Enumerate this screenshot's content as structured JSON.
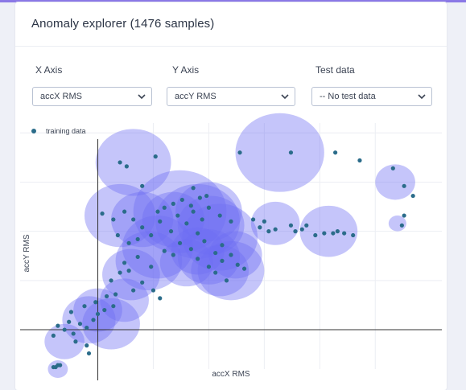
{
  "card": {
    "title": "Anomaly explorer (1476 samples)"
  },
  "controls": {
    "x_axis": {
      "label": "X Axis",
      "value": "accX RMS"
    },
    "y_axis": {
      "label": "Y Axis",
      "value": "accY RMS"
    },
    "test_data": {
      "label": "Test data",
      "value": "-- No test data"
    }
  },
  "icons": {
    "dropdown": "chevron-down-icon"
  },
  "colors": {
    "point": "#2b6c8a",
    "cluster_fill": "#6f6ef2",
    "accent": "#8a78e6"
  },
  "chart_data": {
    "type": "scatter",
    "title": "",
    "xlabel": "accX RMS",
    "ylabel": "accY RMS",
    "legend": {
      "entries": [
        "training data"
      ],
      "position": "top-left"
    },
    "grid": true,
    "xlim": [
      -0.35,
      1.55
    ],
    "ylim": [
      -0.2,
      1.05
    ],
    "series": [
      {
        "name": "training data",
        "points": [
          [
            -0.2,
            -0.19
          ],
          [
            -0.19,
            -0.19
          ],
          [
            -0.18,
            -0.18
          ],
          [
            -0.17,
            -0.18
          ],
          [
            0.1,
            0.85
          ],
          [
            0.13,
            0.83
          ],
          [
            0.2,
            0.73
          ],
          [
            0.26,
            0.88
          ],
          [
            0.43,
            0.72
          ],
          [
            0.64,
            0.9
          ],
          [
            0.87,
            0.9
          ],
          [
            1.07,
            0.9
          ],
          [
            1.18,
            0.86
          ],
          [
            1.33,
            0.82
          ],
          [
            1.38,
            0.73
          ],
          [
            1.42,
            0.68
          ],
          [
            1.38,
            0.58
          ],
          [
            1.37,
            0.53
          ],
          [
            0.7,
            0.56
          ],
          [
            0.73,
            0.52
          ],
          [
            0.75,
            0.55
          ],
          [
            0.77,
            0.5
          ],
          [
            0.8,
            0.51
          ],
          [
            0.87,
            0.53
          ],
          [
            0.89,
            0.5
          ],
          [
            0.92,
            0.51
          ],
          [
            0.94,
            0.53
          ],
          [
            0.98,
            0.48
          ],
          [
            1.02,
            0.49
          ],
          [
            1.06,
            0.49
          ],
          [
            1.08,
            0.5
          ],
          [
            1.11,
            0.49
          ],
          [
            1.15,
            0.48
          ],
          [
            0.55,
            0.58
          ],
          [
            0.6,
            0.55
          ],
          [
            0.56,
            0.43
          ],
          [
            0.53,
            0.39
          ],
          [
            -0.2,
            -0.03
          ],
          [
            -0.18,
            0.02
          ],
          [
            -0.15,
            0.0
          ],
          [
            -0.13,
            0.04
          ],
          [
            -0.11,
            -0.02
          ],
          [
            -0.08,
            0.03
          ],
          [
            -0.05,
            0.01
          ],
          [
            -0.02,
            0.05
          ],
          [
            0.0,
            0.08
          ],
          [
            0.03,
            0.1
          ],
          [
            -0.12,
            0.09
          ],
          [
            -0.06,
            0.12
          ],
          [
            -0.01,
            0.14
          ],
          [
            0.04,
            0.17
          ],
          [
            0.08,
            0.18
          ],
          [
            -0.05,
            -0.08
          ],
          [
            -0.04,
            -0.12
          ],
          [
            -0.1,
            -0.06
          ],
          [
            0.06,
            0.25
          ],
          [
            0.1,
            0.29
          ],
          [
            0.14,
            0.3
          ],
          [
            0.16,
            0.2
          ],
          [
            0.2,
            0.24
          ],
          [
            0.25,
            0.2
          ],
          [
            0.28,
            0.16
          ],
          [
            0.07,
            0.12
          ],
          [
            0.12,
            0.34
          ],
          [
            0.18,
            0.37
          ],
          [
            0.24,
            0.32
          ],
          [
            0.3,
            0.4
          ],
          [
            0.34,
            0.38
          ],
          [
            0.37,
            0.44
          ],
          [
            0.42,
            0.41
          ],
          [
            0.45,
            0.36
          ],
          [
            0.48,
            0.45
          ],
          [
            0.5,
            0.32
          ],
          [
            0.53,
            0.29
          ],
          [
            0.56,
            0.35
          ],
          [
            0.6,
            0.38
          ],
          [
            0.63,
            0.33
          ],
          [
            0.66,
            0.31
          ],
          [
            0.58,
            0.25
          ],
          [
            0.2,
            0.52
          ],
          [
            0.24,
            0.48
          ],
          [
            0.28,
            0.55
          ],
          [
            0.33,
            0.5
          ],
          [
            0.36,
            0.58
          ],
          [
            0.4,
            0.54
          ],
          [
            0.43,
            0.6
          ],
          [
            0.47,
            0.56
          ],
          [
            0.5,
            0.62
          ],
          [
            0.45,
            0.49
          ],
          [
            0.3,
            0.62
          ],
          [
            0.34,
            0.64
          ],
          [
            0.38,
            0.66
          ],
          [
            0.42,
            0.63
          ],
          [
            0.46,
            0.67
          ],
          [
            0.27,
            0.6
          ],
          [
            0.49,
            0.68
          ],
          [
            0.02,
            0.59
          ],
          [
            0.07,
            0.56
          ],
          [
            0.12,
            0.6
          ],
          [
            0.16,
            0.56
          ],
          [
            0.09,
            0.48
          ],
          [
            0.14,
            0.44
          ],
          [
            0.18,
            0.46
          ]
        ]
      }
    ],
    "clusters": [
      {
        "cx": -0.18,
        "cy": -0.2,
        "r": 0.045
      },
      {
        "cx": -0.15,
        "cy": -0.06,
        "r": 0.09
      },
      {
        "cx": -0.04,
        "cy": 0.05,
        "r": 0.12
      },
      {
        "cx": 0.0,
        "cy": 0.1,
        "r": 0.11
      },
      {
        "cx": 0.06,
        "cy": 0.03,
        "r": 0.13
      },
      {
        "cx": 0.12,
        "cy": 0.15,
        "r": 0.11
      },
      {
        "cx": 0.16,
        "cy": 0.85,
        "r": 0.17
      },
      {
        "cx": 0.1,
        "cy": 0.58,
        "r": 0.16
      },
      {
        "cx": 0.2,
        "cy": 0.56,
        "r": 0.14
      },
      {
        "cx": 0.23,
        "cy": 0.35,
        "r": 0.15
      },
      {
        "cx": 0.15,
        "cy": 0.28,
        "r": 0.13
      },
      {
        "cx": 0.27,
        "cy": 0.42,
        "r": 0.16
      },
      {
        "cx": 0.37,
        "cy": 0.6,
        "r": 0.21
      },
      {
        "cx": 0.45,
        "cy": 0.55,
        "r": 0.19
      },
      {
        "cx": 0.51,
        "cy": 0.53,
        "r": 0.15
      },
      {
        "cx": 0.55,
        "cy": 0.47,
        "r": 0.17
      },
      {
        "cx": 0.4,
        "cy": 0.34,
        "r": 0.12
      },
      {
        "cx": 0.45,
        "cy": 0.4,
        "r": 0.12
      },
      {
        "cx": 0.5,
        "cy": 0.37,
        "r": 0.14
      },
      {
        "cx": 0.55,
        "cy": 0.3,
        "r": 0.13
      },
      {
        "cx": 0.62,
        "cy": 0.38,
        "r": 0.12
      },
      {
        "cx": 0.6,
        "cy": 0.3,
        "r": 0.15
      },
      {
        "cx": 0.34,
        "cy": 0.56,
        "r": 0.14
      },
      {
        "cx": 0.5,
        "cy": 0.6,
        "r": 0.15
      },
      {
        "cx": 0.82,
        "cy": 0.9,
        "r": 0.2
      },
      {
        "cx": 0.8,
        "cy": 0.54,
        "r": 0.11
      },
      {
        "cx": 1.04,
        "cy": 0.5,
        "r": 0.13
      },
      {
        "cx": 1.34,
        "cy": 0.75,
        "r": 0.09
      },
      {
        "cx": 1.35,
        "cy": 0.54,
        "r": 0.04
      }
    ]
  }
}
